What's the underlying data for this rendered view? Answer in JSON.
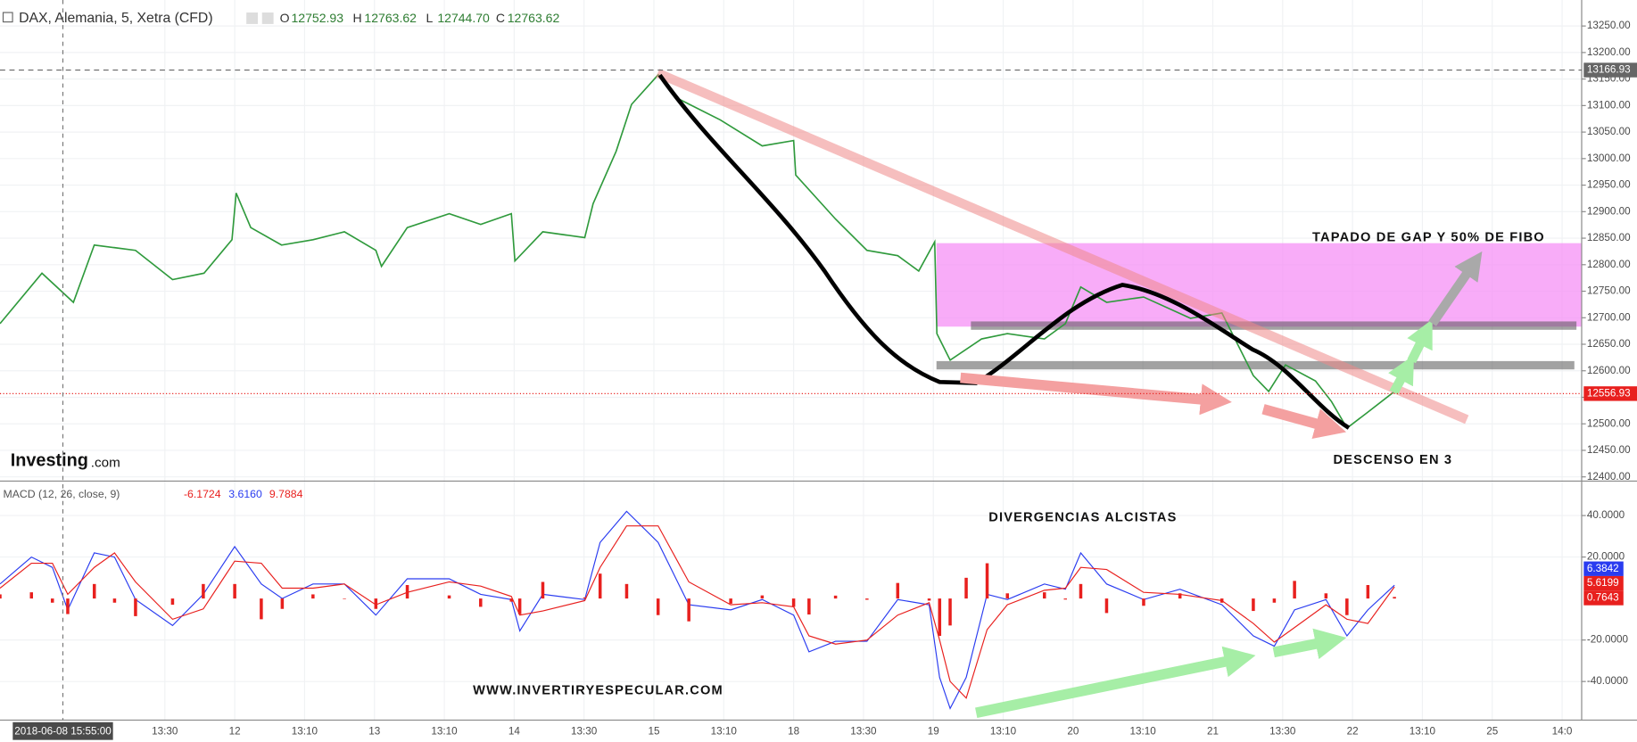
{
  "chart_data": [
    {
      "type": "line",
      "symbol": "DAX, Alemania, 5, Xetra (CFD)",
      "ohlc": [
        {
          "label": "O",
          "value": "12752.93"
        },
        {
          "label": "H",
          "value": "12763.62"
        },
        {
          "label": "L",
          "value": "12744.70"
        },
        {
          "label": "C",
          "value": "12763.62"
        }
      ],
      "logo": [
        "Investing",
        ".com"
      ],
      "annotations": [
        "TAPADO DE GAP Y 50% DE FIBO",
        "DESCENSO EN 3"
      ],
      "x": [
        -1.36,
        -0.76,
        -0.31,
        -0.01,
        0.58,
        1.11,
        1.56,
        1.96,
        2.02,
        2.23,
        2.67,
        3.12,
        3.57,
        4.02,
        4.1,
        4.47,
        5.07,
        5.52,
        5.96,
        6.01,
        6.41,
        7.01,
        7.13,
        7.46,
        7.68,
        8.06,
        8.36,
        8.95,
        9.55,
        10.0,
        10.03,
        10.6,
        11.05,
        11.49,
        11.79,
        12.02,
        12.05,
        12.24,
        12.69,
        13.06,
        13.59,
        13.89,
        14.11,
        14.48,
        15.01,
        15.68,
        16.13,
        16.58,
        16.8,
        17.04,
        17.47,
        17.7,
        17.92,
        18.22,
        18.6
      ],
      "series": [
        {
          "color": "#2f9a3c",
          "values": [
            12689,
            12784,
            12729,
            12837,
            12827,
            12772,
            12784,
            12847,
            12935,
            12870,
            12837,
            12847,
            12862,
            12827,
            12797,
            12870,
            12896,
            12876,
            12896,
            12807,
            12862,
            12851,
            12915,
            13014,
            13102,
            13158,
            13112,
            13073,
            13024,
            13034,
            12969,
            12886,
            12827,
            12817,
            12788,
            12843,
            12670,
            12620,
            12660,
            12670,
            12660,
            12689,
            12758,
            12729,
            12739,
            12699,
            12709,
            12591,
            12561,
            12611,
            12581,
            12542,
            12492,
            12522,
            12561
          ]
        }
      ],
      "xlim": [
        -1.36,
        21.28
      ],
      "ylim": [
        12394,
        13299
      ],
      "yticks": [
        {
          "value": 12400,
          "label": "12400.00"
        },
        {
          "value": 12450,
          "label": "12450.00"
        },
        {
          "value": 12500,
          "label": "12500.00"
        },
        {
          "value": 12550,
          "label": "12550.00"
        },
        {
          "value": 12600,
          "label": "12600.00"
        },
        {
          "value": 12650,
          "label": "12650.00"
        },
        {
          "value": 12700,
          "label": "12700.00"
        },
        {
          "value": 12750,
          "label": "12750.00"
        },
        {
          "value": 12800,
          "label": "12800.00"
        },
        {
          "value": 12850,
          "label": "12850.00"
        },
        {
          "value": 12900,
          "label": "12900.00"
        },
        {
          "value": 12950,
          "label": "12950.00"
        },
        {
          "value": 13000,
          "label": "13000.00"
        },
        {
          "value": 13050,
          "label": "13050.00"
        },
        {
          "value": 13100,
          "label": "13100.00"
        },
        {
          "value": 13150,
          "label": "13150.00"
        },
        {
          "value": 13200,
          "label": "13200.00"
        },
        {
          "value": 13250,
          "label": "13250.00"
        }
      ],
      "xticks": [
        {
          "value": 1,
          "label": "13:30"
        },
        {
          "value": 2,
          "label": "12"
        },
        {
          "value": 3,
          "label": "13:10"
        },
        {
          "value": 4,
          "label": "13"
        },
        {
          "value": 5,
          "label": "13:10"
        },
        {
          "value": 6,
          "label": "14"
        },
        {
          "value": 7,
          "label": "13:30"
        },
        {
          "value": 8,
          "label": "15"
        },
        {
          "value": 9,
          "label": "13:10"
        },
        {
          "value": 10,
          "label": "18"
        },
        {
          "value": 11,
          "label": "13:30"
        },
        {
          "value": 12,
          "label": "19"
        },
        {
          "value": 13,
          "label": "13:10"
        },
        {
          "value": 14,
          "label": "20"
        },
        {
          "value": 15,
          "label": "13:10"
        },
        {
          "value": 16,
          "label": "21"
        },
        {
          "value": 17,
          "label": "13:30"
        },
        {
          "value": 18,
          "label": "22"
        },
        {
          "value": 19,
          "label": "13:10"
        },
        {
          "value": 20,
          "label": "25"
        },
        {
          "value": 21,
          "label": "14:0"
        }
      ],
      "grid": true,
      "price_lines": [
        {
          "value": 13166.93,
          "color": "#666666",
          "style": "dashed"
        },
        {
          "value": 12556.93,
          "color": "#e8201e",
          "style": "dotted"
        }
      ],
      "crosshair": {
        "x": -0.46,
        "label": "2018-06-08 15:55:00"
      }
    },
    {
      "type": "line",
      "title": "MACD (12, 26, close, 9)",
      "legend_values": [
        {
          "text": "-6.1724",
          "color": "#e8201e"
        },
        {
          "text": "3.6160",
          "color": "#2a3cf0"
        },
        {
          "text": "9.7884",
          "color": "#e8201e"
        }
      ],
      "annotations": [
        "DIVERGENCIAS ALCISTAS",
        "WWW.INVERTIRYESPECULAR.COM"
      ],
      "x": [
        -1.36,
        -0.91,
        -0.61,
        -0.39,
        -0.01,
        0.28,
        0.58,
        1.11,
        1.55,
        2.0,
        2.38,
        2.68,
        3.12,
        3.57,
        4.02,
        4.47,
        5.07,
        5.52,
        5.96,
        6.08,
        6.41,
        7.01,
        7.23,
        7.61,
        8.06,
        8.5,
        9.1,
        9.55,
        10.0,
        10.22,
        10.6,
        11.05,
        11.49,
        11.94,
        12.09,
        12.24,
        12.47,
        12.77,
        13.06,
        13.59,
        13.89,
        14.11,
        14.48,
        15.01,
        15.53,
        16.13,
        16.58,
        16.88,
        17.17,
        17.62,
        17.92,
        18.22,
        18.6
      ],
      "series": [
        {
          "color": "#2a3cf0",
          "values": [
            7,
            20,
            15,
            -5.5,
            22,
            20,
            -0.5,
            -13,
            2,
            25,
            7,
            0,
            7,
            7,
            -8,
            9.5,
            9.5,
            2,
            -0.5,
            -15.6,
            2,
            -0.5,
            27,
            42,
            27,
            -3,
            -5.5,
            -0.5,
            -8,
            -25.7,
            -20.6,
            -20.6,
            -0.5,
            -3,
            -38,
            -53,
            -38,
            2,
            -0.5,
            7,
            4.5,
            22,
            7,
            -0.5,
            4.5,
            -3,
            -18,
            -23,
            -5.5,
            -0.5,
            -18,
            -5.5,
            6.3842
          ]
        },
        {
          "color": "#e8201e",
          "values": [
            5,
            17,
            17,
            2,
            15,
            22,
            8,
            -10,
            -5,
            18,
            17,
            5,
            5,
            7,
            -3,
            3,
            8,
            6,
            1,
            -8,
            -6,
            -1,
            15,
            35,
            35,
            8,
            -3,
            -2,
            -4,
            -18,
            -22,
            -20,
            -8,
            -2,
            -20,
            -40,
            -48,
            -15,
            -3,
            4,
            5,
            15,
            14,
            3,
            2,
            -1,
            -12,
            -21,
            -14,
            -3,
            -10,
            -12,
            5.6199
          ]
        },
        {
          "color": "#e8201e",
          "kind": "histogram",
          "values": [
            2,
            3,
            -2,
            -7.5,
            7,
            -2,
            -8.5,
            -3,
            7,
            7,
            -10,
            -5,
            2,
            0,
            -5,
            6.5,
            1.5,
            -4,
            -1.5,
            -7.6,
            8,
            0.5,
            12,
            7,
            -8,
            -11,
            -2.5,
            1.5,
            -4,
            -7.7,
            1.4,
            -0.6,
            7.5,
            -1,
            -18,
            -13,
            10,
            17,
            2.5,
            3,
            -0.5,
            7,
            -7,
            -3.5,
            2.5,
            -2,
            -6,
            -2,
            8.5,
            2.5,
            -8,
            6.5,
            0.7643
          ]
        }
      ],
      "xlim": [
        -1.36,
        21.28
      ],
      "ylim": [
        -58.6,
        56.1
      ],
      "yticks": [
        {
          "value": 40,
          "label": "40.0000"
        },
        {
          "value": 20,
          "label": "20.0000"
        },
        {
          "value": -20,
          "label": "-20.0000"
        },
        {
          "value": -40,
          "label": "-40.0000"
        }
      ],
      "grid": true
    }
  ]
}
